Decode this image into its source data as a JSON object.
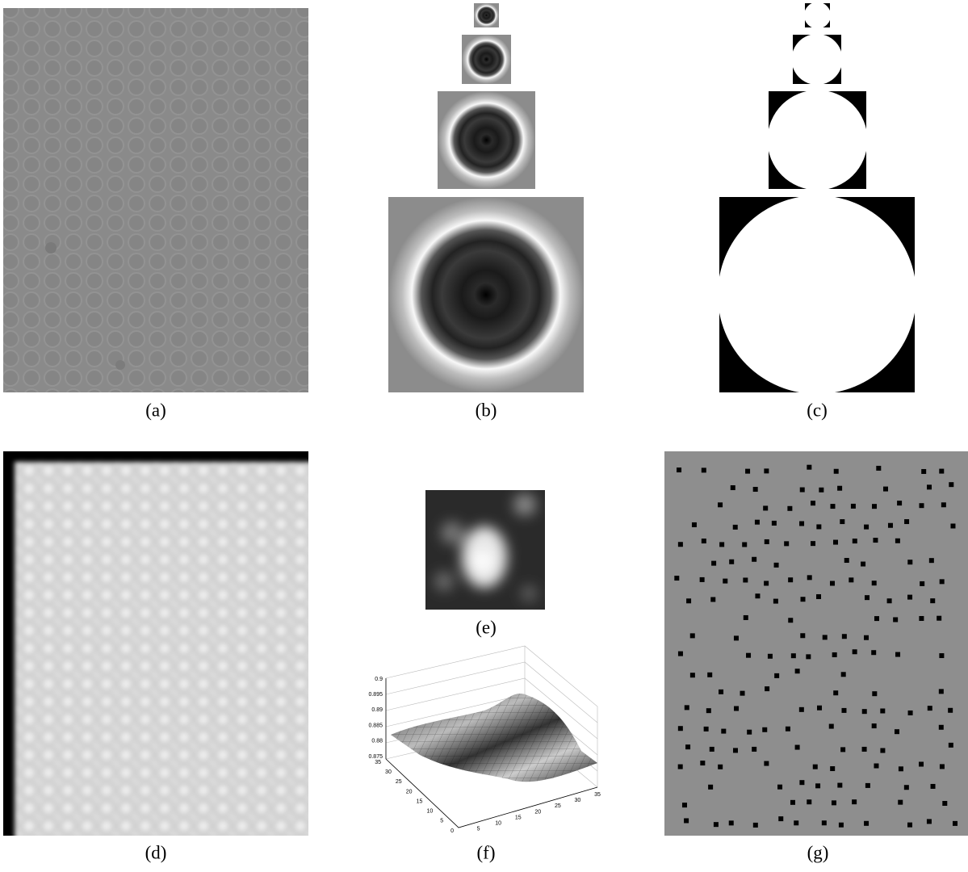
{
  "labels": {
    "a": "(a)",
    "b": "(b)",
    "c": "(c)",
    "d": "(d)",
    "e": "(e)",
    "f": "(f)",
    "g": "(g)"
  },
  "plot_f": {
    "z_ticks": [
      "0.9",
      "0.895",
      "0.89",
      "0.885",
      "0.88",
      "0.875"
    ],
    "x_ticks": [
      "0",
      "5",
      "10",
      "15",
      "20",
      "25",
      "30",
      "35"
    ],
    "y_ticks": [
      "0",
      "5",
      "10",
      "15",
      "20",
      "25",
      "30",
      "35"
    ]
  }
}
